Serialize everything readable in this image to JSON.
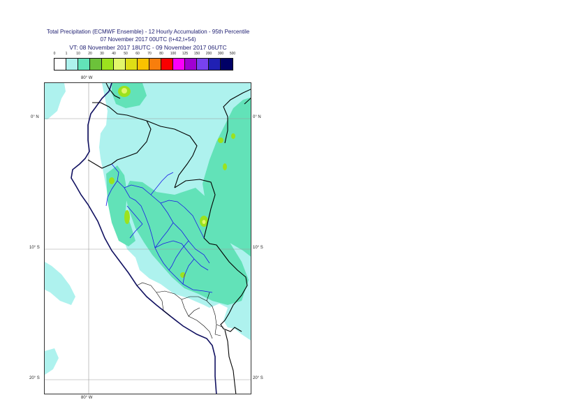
{
  "title": {
    "line1": "Total Precipitation (ECMWF Ensemble) - 12 Hourly Accumulation - 95th Percentile",
    "line2": "07 November 2017 00UTC (t+42,t+54)",
    "line3": "VT: 08 November 2017 18UTC - 09 November 2017 06UTC"
  },
  "legend": {
    "labels": [
      "0",
      "1",
      "10",
      "20",
      "30",
      "40",
      "50",
      "60",
      "70",
      "80",
      "100",
      "125",
      "150",
      "200",
      "300",
      "500"
    ],
    "colors": [
      "#ffffff",
      "#aef2ee",
      "#62e2b8",
      "#6cc23a",
      "#9ce21e",
      "#e2f66a",
      "#dede16",
      "#fac200",
      "#f87e0c",
      "#fa0000",
      "#fa00fa",
      "#a000d2",
      "#7842f0",
      "#2020b4",
      "#000066"
    ]
  },
  "axes": {
    "top_lon": "80° W",
    "bottom_lon": "80° W",
    "lat_0_left": "0° N",
    "lat_0_right": "0° N",
    "lat_10_left": "10° S",
    "lat_10_right": "10° S",
    "lat_20_left": "20° S",
    "lat_20_right": "20° S"
  },
  "map": {
    "colors": {
      "ocean": "#ffffff",
      "light_precip": "#aef2ee",
      "moderate_precip": "#62e2b8",
      "heavy_precip": "#9ce21e",
      "very_heavy_precip": "#e2f66a",
      "coastline": "#101060",
      "national_border": "#000000",
      "region_border": "#1a1ae6",
      "grid": "#999999"
    }
  }
}
